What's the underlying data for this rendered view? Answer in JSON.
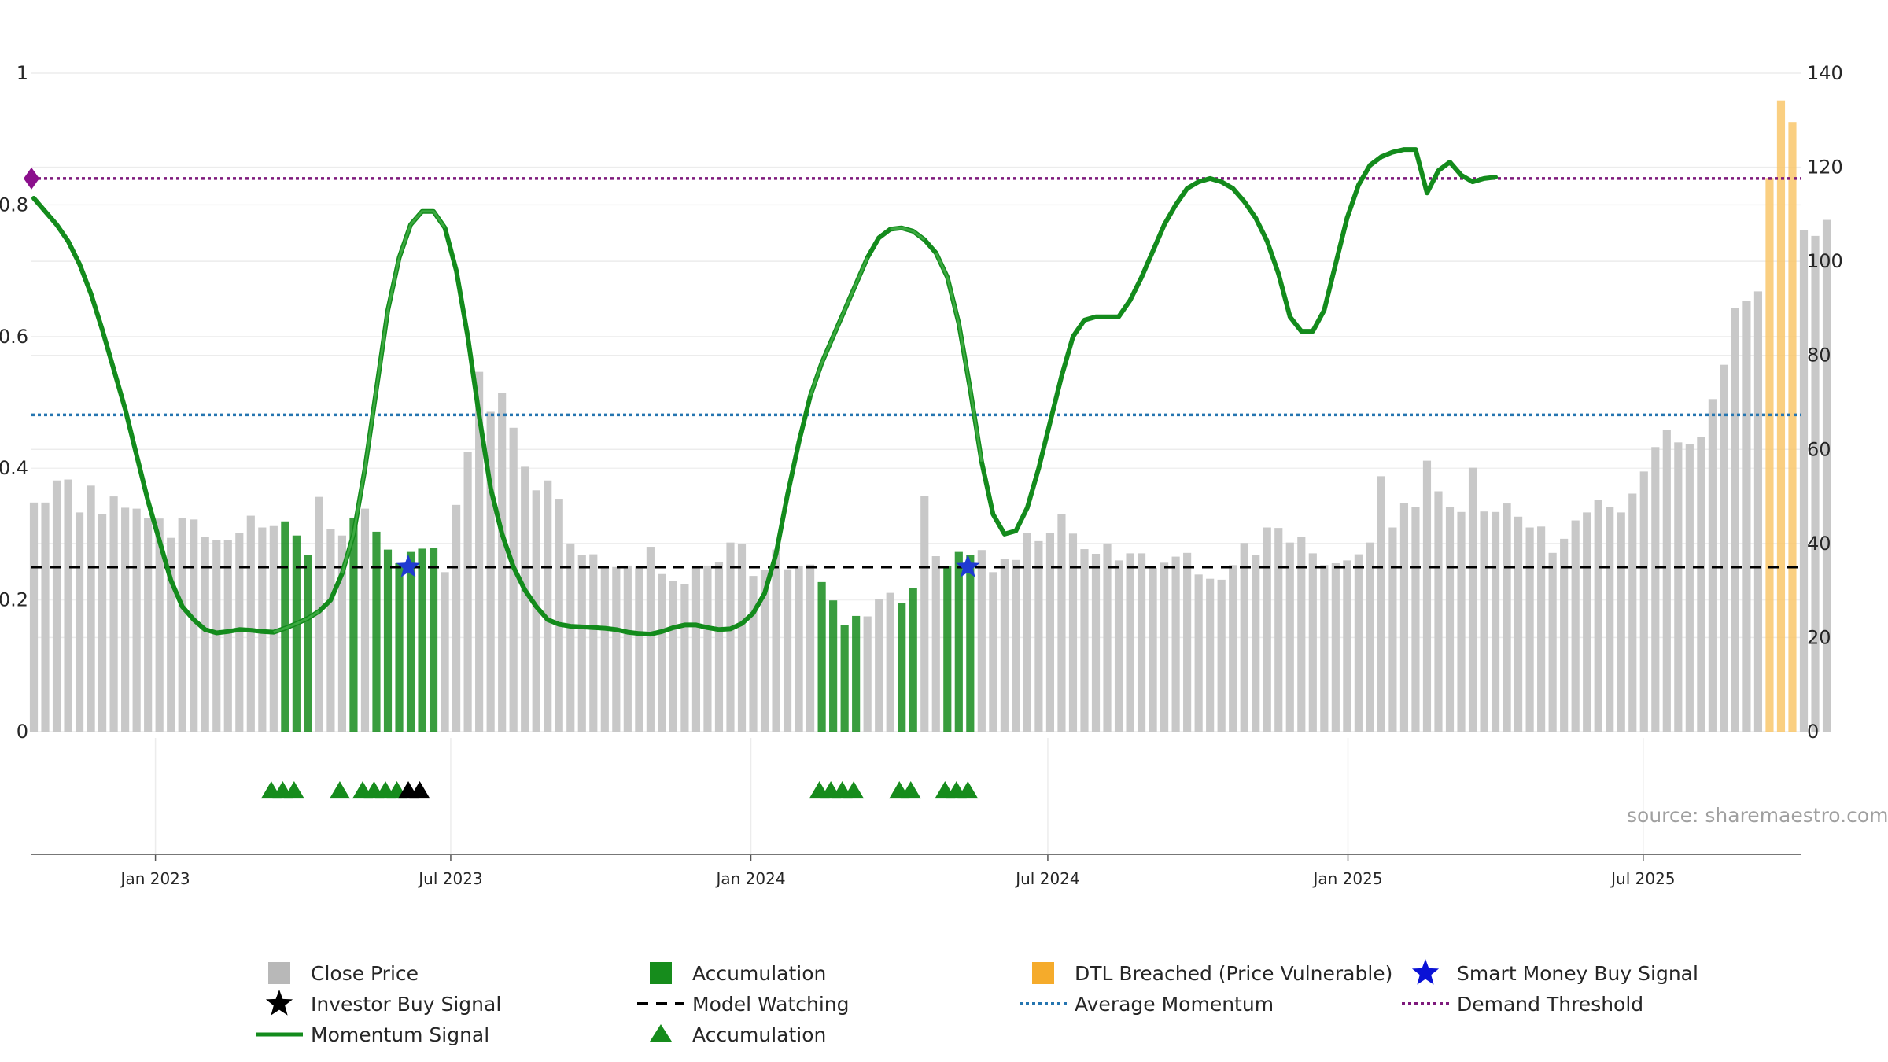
{
  "chart_data": {
    "type": "bar",
    "source": "source: sharemaestro.com",
    "left_axis": {
      "ylim": [
        0,
        1
      ],
      "ticks": [
        0,
        0.2,
        0.4,
        0.6,
        0.8,
        1
      ],
      "tick_labels": [
        "0",
        "0.2",
        "0.4",
        "0.6",
        "0.8",
        "1"
      ]
    },
    "right_axis": {
      "ylim": [
        0,
        140
      ],
      "ticks": [
        0,
        20,
        40,
        60,
        80,
        100,
        120,
        140
      ],
      "tick_labels": [
        "0",
        "20",
        "40",
        "60",
        "80",
        "100",
        "120",
        "140"
      ]
    },
    "x_axis": {
      "start": "2022-10-17",
      "end": "2025-10-06",
      "tick_labels": [
        "Jan 2023",
        "Jul 2023",
        "Jan 2024",
        "Jul 2024",
        "Jan 2025",
        "Jul 2025"
      ]
    },
    "close_price": {
      "start_date": "2022-10-17",
      "interval_days": 7,
      "values": [
        48.7,
        48.7,
        53.4,
        53.6,
        46.6,
        52.3,
        46.3,
        50,
        47.6,
        47.4,
        45.4,
        45.3,
        41.2,
        45.4,
        45.1,
        41.4,
        40.7,
        40.7,
        42.2,
        45.9,
        43.4,
        43.7,
        44.7,
        41.7,
        37.6,
        49.9,
        43.1,
        41.7,
        45.5,
        47.4,
        42.5,
        38.7,
        35.8,
        38.2,
        38.9,
        39,
        33.9,
        48.2,
        59.5,
        76.5,
        68,
        72,
        64.6,
        56.3,
        51.3,
        53.4,
        49.5,
        40,
        37.6,
        37.7,
        35.1,
        35,
        35.3,
        35.1,
        39.3,
        33.5,
        32,
        31.3,
        35.2,
        35.3,
        36.1,
        40.2,
        39.9,
        33.1,
        34.3,
        38.7,
        34.5,
        35.2,
        35.5,
        31.8,
        27.9,
        22.6,
        24.6,
        24.5,
        28.2,
        29.5,
        27.3,
        30.6,
        50.1,
        37.3,
        35.2,
        38.2,
        37.6,
        38.6,
        33.9,
        36.7,
        36.5,
        42.2,
        40.5,
        42.2,
        46.2,
        42.1,
        38.8,
        37.8,
        40,
        36.4,
        37.9,
        37.9,
        34.8,
        35.9,
        37.2,
        38,
        33.4,
        32.5,
        32.3,
        35.4,
        40.1,
        37.5,
        43.4,
        43.3,
        40.2,
        41.4,
        37.9,
        35.4,
        35.8,
        36.4,
        37.7,
        40.2,
        54.3,
        43.4,
        48.6,
        47.8,
        57.6,
        51.1,
        47.7,
        46.7,
        56.1,
        46.8,
        46.7,
        48.5,
        45.7,
        43.4,
        43.6,
        38,
        41,
        44.9,
        46.6,
        49.2,
        47.8,
        46.6,
        50.6,
        55.3,
        60.5,
        64.1,
        61.5,
        61.1,
        62.7,
        70.7,
        78,
        90.1,
        91.6,
        93.6,
        117.7,
        134.2,
        129.6,
        106.7,
        105.4,
        108.8
      ],
      "color": "#c8c8c8"
    },
    "accumulation_bar_indices": [
      22,
      23,
      24,
      28,
      30,
      31,
      32,
      33,
      34,
      35,
      69,
      70,
      71,
      72,
      76,
      77,
      80,
      81,
      82
    ],
    "dtl_breached_bar_indices": [
      152,
      153,
      154
    ],
    "momentum": {
      "start_date": "2022-10-17",
      "interval_days": 7,
      "values": [
        0.81,
        0.79,
        0.77,
        0.745,
        0.71,
        0.665,
        0.61,
        0.55,
        0.49,
        0.42,
        0.35,
        0.29,
        0.23,
        0.19,
        0.17,
        0.155,
        0.15,
        0.152,
        0.155,
        0.154,
        0.152,
        0.151,
        0.157,
        0.164,
        0.172,
        0.183,
        0.2,
        0.24,
        0.3,
        0.4,
        0.52,
        0.64,
        0.72,
        0.77,
        0.79,
        0.79,
        0.765,
        0.7,
        0.6,
        0.48,
        0.37,
        0.3,
        0.25,
        0.215,
        0.19,
        0.17,
        0.163,
        0.16,
        0.159,
        0.158,
        0.157,
        0.155,
        0.151,
        0.149,
        0.148,
        0.152,
        0.158,
        0.162,
        0.162,
        0.158,
        0.155,
        0.156,
        0.164,
        0.18,
        0.21,
        0.27,
        0.36,
        0.44,
        0.51,
        0.56,
        0.6,
        0.64,
        0.68,
        0.72,
        0.75,
        0.763,
        0.765,
        0.76,
        0.747,
        0.727,
        0.69,
        0.62,
        0.52,
        0.41,
        0.33,
        0.3,
        0.305,
        0.34,
        0.4,
        0.47,
        0.54,
        0.6,
        0.625,
        0.63,
        0.63,
        0.63,
        0.655,
        0.69,
        0.73,
        0.77,
        0.8,
        0.825,
        0.835,
        0.84,
        0.835,
        0.825,
        0.805,
        0.78,
        0.745,
        0.695,
        0.63,
        0.608,
        0.608,
        0.64,
        0.71,
        0.78,
        0.83,
        0.86,
        0.873,
        0.88,
        0.884,
        0.884,
        0.818,
        0.852,
        0.865,
        0.845,
        0.835,
        0.84,
        0.842
      ],
      "color": "#138b1c",
      "accumulation_indices": [
        22,
        23,
        24,
        28,
        30,
        31,
        32,
        33,
        34,
        35,
        69,
        70,
        71,
        72,
        76,
        77,
        80,
        81,
        82
      ]
    },
    "reference_lines": {
      "model_watching": 0.25,
      "average_momentum": 0.481,
      "demand_threshold": 0.84
    },
    "smart_money_buy_signals": [
      "2023-06-05",
      "2024-05-13"
    ],
    "demand_marker": {
      "date": "2022-10-17",
      "value": 0.84
    },
    "triangle_markers": {
      "accumulation_dates": [
        "2023-03-13",
        "2023-03-20",
        "2023-03-27",
        "2023-04-24",
        "2023-05-08",
        "2023-05-15",
        "2023-05-22",
        "2023-05-29",
        "2024-02-12",
        "2024-02-19",
        "2024-02-26",
        "2024-03-04",
        "2024-04-01",
        "2024-04-08",
        "2024-04-29",
        "2024-05-06",
        "2024-05-13"
      ],
      "investor_buy_dates": [
        "2023-06-05",
        "2023-06-12"
      ]
    },
    "legend": [
      {
        "label": "Close Price",
        "symbol": "square",
        "color": "#b8b8b8"
      },
      {
        "label": "Accumulation",
        "symbol": "square",
        "color": "#168c1c"
      },
      {
        "label": "DTL Breached (Price Vulnerable)",
        "symbol": "square",
        "color": "#f5ab2b"
      },
      {
        "label": "Smart Money Buy Signal",
        "symbol": "star",
        "color": "#0a12d6"
      },
      {
        "label": "Investor Buy Signal",
        "symbol": "star",
        "color": "#000000"
      },
      {
        "label": "Model Watching",
        "symbol": "dash",
        "color": "#000000"
      },
      {
        "label": "Average Momentum",
        "symbol": "dot",
        "color": "#2575b0"
      },
      {
        "label": "Demand Threshold",
        "symbol": "dot",
        "color": "#7e1a7c"
      },
      {
        "label": "Momentum Signal",
        "symbol": "line",
        "color": "#138b1c"
      },
      {
        "label": "Accumulation",
        "symbol": "triangle",
        "color": "#168c1c"
      }
    ]
  }
}
